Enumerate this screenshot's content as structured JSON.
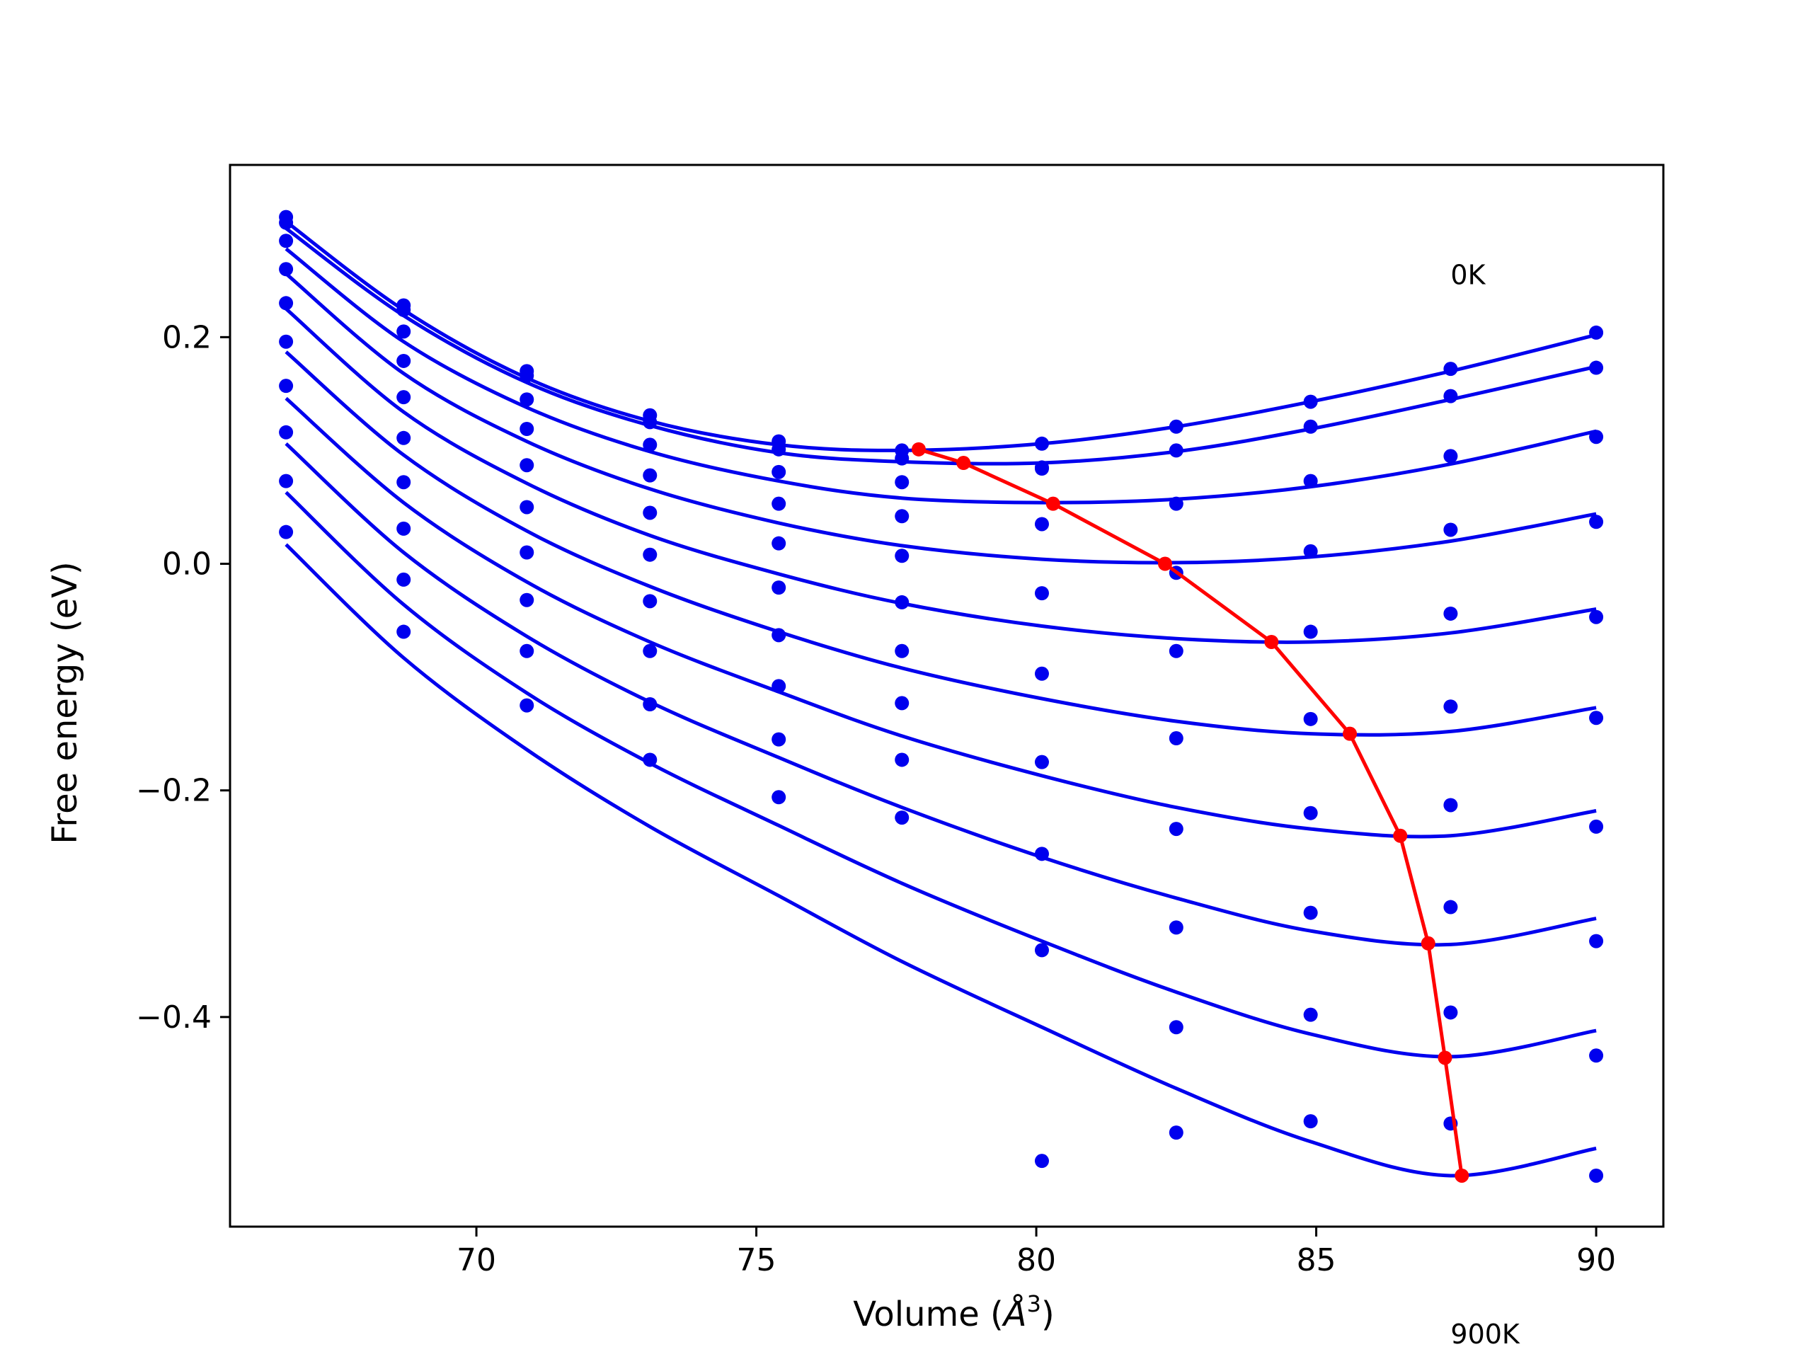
{
  "chart_data": {
    "type": "line",
    "title": "",
    "xlabel": "Volume (Å³)",
    "xlabel_parts": {
      "main": "Volume (",
      "unit": "Å",
      "exp": "3",
      "close": ")"
    },
    "ylabel": "Free energy (eV)",
    "xlim": [
      65.6,
      91.2
    ],
    "ylim": [
      -0.585,
      0.352
    ],
    "xticks": [
      70,
      75,
      80,
      85,
      90
    ],
    "xtick_labels": [
      "70",
      "75",
      "80",
      "85",
      "90"
    ],
    "yticks": [
      0.2,
      0.0,
      -0.2,
      -0.4
    ],
    "ytick_labels": [
      "0.2",
      "0.0",
      "−0.2",
      "−0.4"
    ],
    "grid": false,
    "annotations": [
      {
        "text": "0K",
        "x": 87.4,
        "y": 0.255
      },
      {
        "text": "900K",
        "x": 87.4,
        "y": -0.68
      }
    ],
    "colors": {
      "fits": "#0000ee",
      "points": "#0000ee",
      "equilibrium": "#ff0000",
      "frame": "#000000"
    },
    "volumes": [
      66.6,
      68.7,
      70.9,
      73.1,
      75.4,
      77.6,
      80.1,
      82.5,
      84.9,
      87.4,
      90.0
    ],
    "points": [
      [
        0.306,
        0.228,
        0.17,
        0.131,
        0.108,
        0.1,
        0.106,
        0.121,
        0.143,
        0.172,
        0.204
      ],
      [
        0.301,
        0.224,
        0.166,
        0.125,
        0.101,
        0.093,
        0.085,
        0.1,
        0.121,
        0.148,
        0.173
      ],
      [
        0.285,
        0.205,
        0.145,
        0.105,
        0.081,
        0.072,
        0.084,
        0.053,
        0.073,
        0.095,
        0.112
      ],
      [
        0.26,
        0.179,
        0.119,
        0.078,
        0.053,
        0.042,
        0.035,
        -0.008,
        0.011,
        0.03,
        0.037
      ],
      [
        0.23,
        0.147,
        0.087,
        0.045,
        0.018,
        0.007,
        -0.026,
        -0.077,
        -0.06,
        -0.044,
        -0.047
      ],
      [
        0.196,
        0.111,
        0.05,
        0.008,
        -0.021,
        -0.034,
        -0.097,
        -0.154,
        -0.137,
        -0.126,
        -0.136
      ],
      [
        0.157,
        0.072,
        0.01,
        -0.033,
        -0.063,
        -0.077,
        -0.175,
        -0.234,
        -0.22,
        -0.213,
        -0.232
      ],
      [
        0.116,
        0.031,
        -0.032,
        -0.077,
        -0.108,
        -0.123,
        -0.256,
        -0.321,
        -0.308,
        -0.303,
        -0.333
      ],
      [
        0.073,
        -0.014,
        -0.077,
        -0.124,
        -0.155,
        -0.173,
        -0.341,
        -0.409,
        -0.398,
        -0.396,
        -0.434
      ],
      [
        0.028,
        -0.06,
        -0.125,
        -0.173,
        -0.206,
        -0.224,
        -0.527,
        -0.502,
        -0.492,
        -0.494,
        -0.54
      ]
    ],
    "fits": [
      [
        0.302,
        0.224,
        0.164,
        0.126,
        0.105,
        0.1,
        0.106,
        0.121,
        0.143,
        0.17,
        0.202
      ],
      [
        0.296,
        0.219,
        0.16,
        0.122,
        0.098,
        0.09,
        0.089,
        0.099,
        0.119,
        0.145,
        0.174
      ],
      [
        0.278,
        0.196,
        0.138,
        0.099,
        0.073,
        0.058,
        0.054,
        0.057,
        0.068,
        0.088,
        0.117
      ],
      [
        0.256,
        0.168,
        0.108,
        0.066,
        0.036,
        0.016,
        0.004,
        0.001,
        0.006,
        0.02,
        0.044
      ],
      [
        0.225,
        0.134,
        0.071,
        0.025,
        -0.009,
        -0.035,
        -0.055,
        -0.066,
        -0.069,
        -0.061,
        -0.04
      ],
      [
        0.187,
        0.096,
        0.029,
        -0.02,
        -0.06,
        -0.092,
        -0.119,
        -0.139,
        -0.15,
        -0.148,
        -0.127
      ],
      [
        0.146,
        0.054,
        -0.016,
        -0.069,
        -0.113,
        -0.152,
        -0.187,
        -0.215,
        -0.234,
        -0.24,
        -0.218
      ],
      [
        0.106,
        0.01,
        -0.064,
        -0.122,
        -0.171,
        -0.215,
        -0.259,
        -0.295,
        -0.324,
        -0.336,
        -0.313
      ],
      [
        0.063,
        -0.036,
        -0.114,
        -0.176,
        -0.231,
        -0.282,
        -0.333,
        -0.378,
        -0.415,
        -0.435,
        -0.412
      ],
      [
        0.017,
        -0.083,
        -0.164,
        -0.232,
        -0.293,
        -0.351,
        -0.409,
        -0.463,
        -0.51,
        -0.54,
        -0.516
      ]
    ],
    "equilibrium": {
      "x": [
        77.9,
        78.7,
        80.3,
        82.3,
        84.2,
        85.6,
        86.5,
        87.0,
        87.3,
        87.6
      ],
      "y": [
        0.101,
        0.089,
        0.053,
        0.0,
        -0.069,
        -0.15,
        -0.24,
        -0.335,
        -0.436,
        -0.54
      ]
    }
  }
}
